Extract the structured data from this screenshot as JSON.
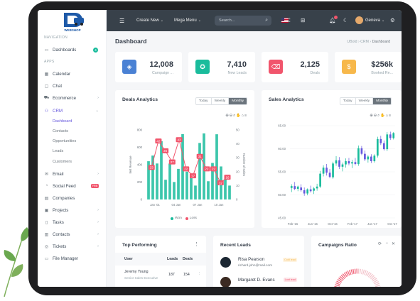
{
  "brand": {
    "logo_text": "WEBSHOP"
  },
  "sidebar": {
    "section_navigation": "NAVIGATION",
    "section_apps": "APPS",
    "dashboards": {
      "label": "Dashboards",
      "badge": "4"
    },
    "items": [
      {
        "label": "Calendar",
        "icon": "calendar-icon"
      },
      {
        "label": "Chat",
        "icon": "chat-icon"
      },
      {
        "label": "Ecommerce",
        "icon": "cart-icon"
      },
      {
        "label": "CRM",
        "icon": "users-icon"
      }
    ],
    "crm_sub": [
      "Dashboard",
      "Contacts",
      "Opportunities",
      "Leads",
      "Customers"
    ],
    "items2": [
      {
        "label": "Email",
        "icon": "mail-icon"
      },
      {
        "label": "Social Feed",
        "icon": "rss-icon",
        "badge": "FRB"
      },
      {
        "label": "Companies",
        "icon": "building-icon"
      },
      {
        "label": "Projects",
        "icon": "briefcase-icon"
      },
      {
        "label": "Tasks",
        "icon": "clipboard-icon"
      },
      {
        "label": "Contacts",
        "icon": "book-icon"
      },
      {
        "label": "Tickets",
        "icon": "aperture-icon"
      },
      {
        "label": "File Manager",
        "icon": "folder-icon"
      }
    ]
  },
  "topbar": {
    "create_new": "Create New",
    "mega_menu": "Mega Menu",
    "search_placeholder": "Search...",
    "user_name": "Geneva"
  },
  "header": {
    "title": "Dashboard",
    "breadcrumb": [
      "UBold",
      "CRM",
      "Dashboard"
    ]
  },
  "widgets": [
    {
      "value": "12,008",
      "label": "Campaign ...",
      "color": "#4a81d4",
      "icon": "layers-icon"
    },
    {
      "value": "7,410",
      "label": "New Leads",
      "color": "#1abc9c",
      "icon": "award-icon"
    },
    {
      "value": "2,125",
      "label": "Deals",
      "color": "#f1556c",
      "icon": "delete-icon"
    },
    {
      "value": "$256k",
      "label": "Booked Re...",
      "color": "#f7b84b",
      "icon": "dollar-icon"
    }
  ],
  "deals_analytics": {
    "title": "Deals Analytics",
    "buttons": [
      "Today",
      "Weekly",
      "Monthly"
    ],
    "selected": "Monthly",
    "legend": [
      "Won",
      "Loss"
    ]
  },
  "sales_analytics": {
    "title": "Sales Analytics",
    "buttons": [
      "Today",
      "Weekly",
      "Monthly"
    ],
    "selected": "Monthly"
  },
  "top_performing": {
    "title": "Top Performing",
    "columns": [
      "User",
      "Leads",
      "Deals"
    ],
    "rows": [
      {
        "name": "Jeremy Young",
        "role": "Senior Sales Executive",
        "leads": "187",
        "deals": "154"
      }
    ]
  },
  "recent_leads": {
    "title": "Recent Leads",
    "leads": [
      {
        "name": "Risa Pearson",
        "email": "richard.john@mail.com",
        "tag": "Cold lead",
        "tag_color": "#f7b84b"
      },
      {
        "name": "Margaret D. Evans",
        "email": "",
        "tag": "Lost lead",
        "tag_color": "#f1556c"
      }
    ]
  },
  "campaigns_ratio": {
    "title": "Campaigns Ratio"
  },
  "chart_data": [
    {
      "type": "bar",
      "title": "Deals Analytics",
      "ylabel": "Net Revenue",
      "y2label": "Number of Sales",
      "ylim": [
        0,
        800
      ],
      "y2lim": [
        0,
        50
      ],
      "xticks": [
        "Jan '01",
        "04 Jan",
        "07 Jan",
        "10 Jan"
      ],
      "series": [
        {
          "name": "Won",
          "type": "bar",
          "color": "#1abc9c",
          "values": [
            440,
            505,
            414,
            671,
            227,
            413,
            201,
            352,
            752,
            320,
            257,
            160,
            650,
            760,
            210,
            420,
            750,
            380,
            230,
            160
          ]
        },
        {
          "name": "Loss",
          "type": "line",
          "color": "#f1556c",
          "values": [
            23,
            42,
            35,
            27,
            43,
            22,
            17,
            31,
            22,
            22,
            12,
            16
          ]
        }
      ]
    },
    {
      "type": "candlestick",
      "title": "Sales Analytics",
      "ylim": [
        45,
        65
      ],
      "yticks": [
        45,
        50,
        55,
        60,
        65
      ],
      "xticks": [
        "Feb '16",
        "Jun '16",
        "Oct '16",
        "Feb '17",
        "Jun '17",
        "Oct '17"
      ],
      "up_color": "#1abc9c",
      "down_color": "#6658dd",
      "candles": [
        [
          51.5,
          52.3,
          50.6,
          51.9
        ],
        [
          51.9,
          52.8,
          51.0,
          51.3
        ],
        [
          51.3,
          52.0,
          50.8,
          51.8
        ],
        [
          51.6,
          52.3,
          50.7,
          51.0
        ],
        [
          51.0,
          51.6,
          49.8,
          50.3
        ],
        [
          50.3,
          51.4,
          49.9,
          51.2
        ],
        [
          51.2,
          52.0,
          50.5,
          50.8
        ],
        [
          50.9,
          51.7,
          50.2,
          51.4
        ],
        [
          51.4,
          52.4,
          50.9,
          51.8
        ],
        [
          51.8,
          55.2,
          51.5,
          54.6
        ],
        [
          54.6,
          56.4,
          54.0,
          55.9
        ],
        [
          55.9,
          56.7,
          54.2,
          54.8
        ],
        [
          54.8,
          55.6,
          53.6,
          53.9
        ],
        [
          53.8,
          57.2,
          53.5,
          56.8
        ],
        [
          56.8,
          58.4,
          56.3,
          57.5
        ],
        [
          57.5,
          58.2,
          55.6,
          56.1
        ],
        [
          56.1,
          57.0,
          55.1,
          56.6
        ],
        [
          56.6,
          57.9,
          55.9,
          57.3
        ],
        [
          57.3,
          58.0,
          56.4,
          56.8
        ],
        [
          56.8,
          57.6,
          55.8,
          57.1
        ],
        [
          57.1,
          58.0,
          56.4,
          56.7
        ],
        [
          56.7,
          60.7,
          56.3,
          60.1
        ],
        [
          60.1,
          60.6,
          58.6,
          58.9
        ],
        [
          58.9,
          59.6,
          57.3,
          57.7
        ],
        [
          57.7,
          58.6,
          57.0,
          58.3
        ],
        [
          58.3,
          58.8,
          56.9,
          57.3
        ],
        [
          57.3,
          58.8,
          57.0,
          58.5
        ],
        [
          58.5,
          62.6,
          58.1,
          62.1
        ],
        [
          62.1,
          62.8,
          60.8,
          61.2
        ],
        [
          61.2,
          61.8,
          59.6,
          59.9
        ],
        [
          59.9,
          63.6,
          59.5,
          63.1
        ],
        [
          63.1,
          63.7,
          61.9,
          62.3
        ],
        [
          62.3,
          63.6,
          62.0,
          63.4
        ]
      ]
    }
  ]
}
